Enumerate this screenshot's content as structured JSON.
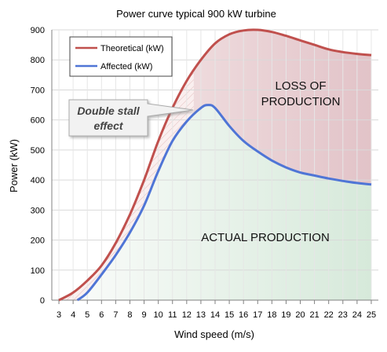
{
  "chart_data": {
    "type": "line",
    "title": "Power curve typical 900 kW turbine",
    "xlabel": "Wind speed (m/s)",
    "ylabel": "Power (kW)",
    "xlim": [
      3,
      25
    ],
    "ylim": [
      0,
      900
    ],
    "x_ticks": [
      3,
      4,
      5,
      6,
      7,
      8,
      9,
      10,
      11,
      12,
      13,
      14,
      15,
      16,
      17,
      18,
      19,
      20,
      21,
      22,
      23,
      24,
      25
    ],
    "y_ticks": [
      0,
      100,
      200,
      300,
      400,
      500,
      600,
      700,
      800,
      900
    ],
    "grid": true,
    "legend_position": "top-left",
    "series": [
      {
        "name": "Theoretical (kW)",
        "color": "#c0504d",
        "x": [
          3,
          4,
          5,
          6,
          7,
          8,
          9,
          10,
          11,
          12,
          13,
          14,
          15,
          16,
          17,
          18,
          19,
          20,
          21,
          22,
          23,
          24,
          25
        ],
        "values": [
          0,
          25,
          65,
          115,
          190,
          285,
          400,
          530,
          640,
          730,
          800,
          855,
          885,
          898,
          900,
          893,
          880,
          865,
          850,
          835,
          826,
          820,
          816
        ]
      },
      {
        "name": "Affected (kW)",
        "color": "#4f75d6",
        "x": [
          4.3,
          5,
          6,
          7,
          8,
          9,
          10,
          11,
          12,
          13,
          13.5,
          14,
          15,
          16,
          17,
          18,
          19,
          20,
          21,
          22,
          23,
          24,
          25
        ],
        "values": [
          0,
          25,
          85,
          150,
          225,
          315,
          430,
          530,
          595,
          640,
          650,
          640,
          580,
          530,
          495,
          465,
          442,
          425,
          415,
          405,
          397,
          390,
          385
        ]
      }
    ],
    "annotations": {
      "loss_line1": "LOSS OF",
      "loss_line2": "PRODUCTION",
      "actual": "ACTUAL PRODUCTION",
      "callout_line1": "Double stall",
      "callout_line2": "effect"
    }
  }
}
